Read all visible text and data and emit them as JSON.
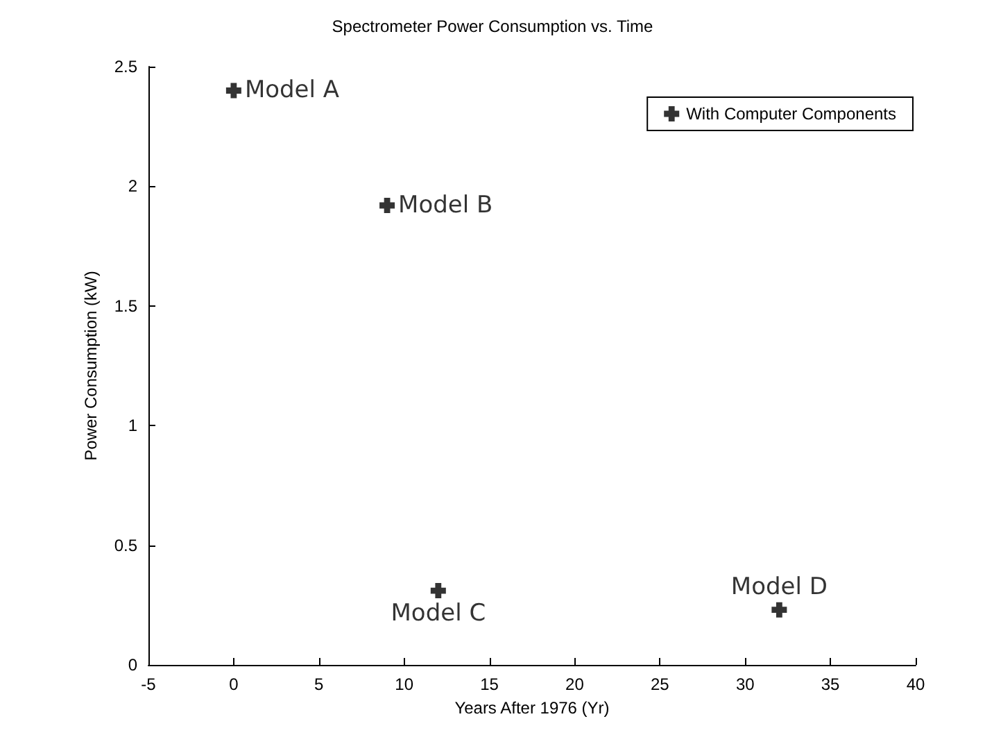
{
  "chart_data": {
    "type": "scatter",
    "title": "Spectrometer Power Consumption vs. Time",
    "xlabel": "Years After 1976 (Yr)",
    "ylabel": "Power Consumption (kW)",
    "series": [
      {
        "name": "With Computer Components",
        "color": "#000000",
        "x": [
          0,
          9,
          12,
          32
        ],
        "values": [
          2.4,
          1.92,
          0.31,
          0.23
        ]
      }
    ],
    "annotations": [
      {
        "text": "Model A",
        "x": 0,
        "y": 2.4
      },
      {
        "text": "Model B",
        "x": 9,
        "y": 1.92
      },
      {
        "text": "Model C",
        "x": 12,
        "y": 0.31
      },
      {
        "text": "Model D",
        "x": 32,
        "y": 0.23
      }
    ],
    "xlim": [
      -5,
      40
    ],
    "xticks": [
      -5,
      0,
      5,
      10,
      15,
      20,
      25,
      30,
      35,
      40
    ],
    "ylim": [
      0,
      2.5
    ],
    "yticks": [
      0,
      0.5,
      1,
      1.5,
      2,
      2.5
    ],
    "grid": false,
    "legend": "top right",
    "marker": "cross"
  }
}
